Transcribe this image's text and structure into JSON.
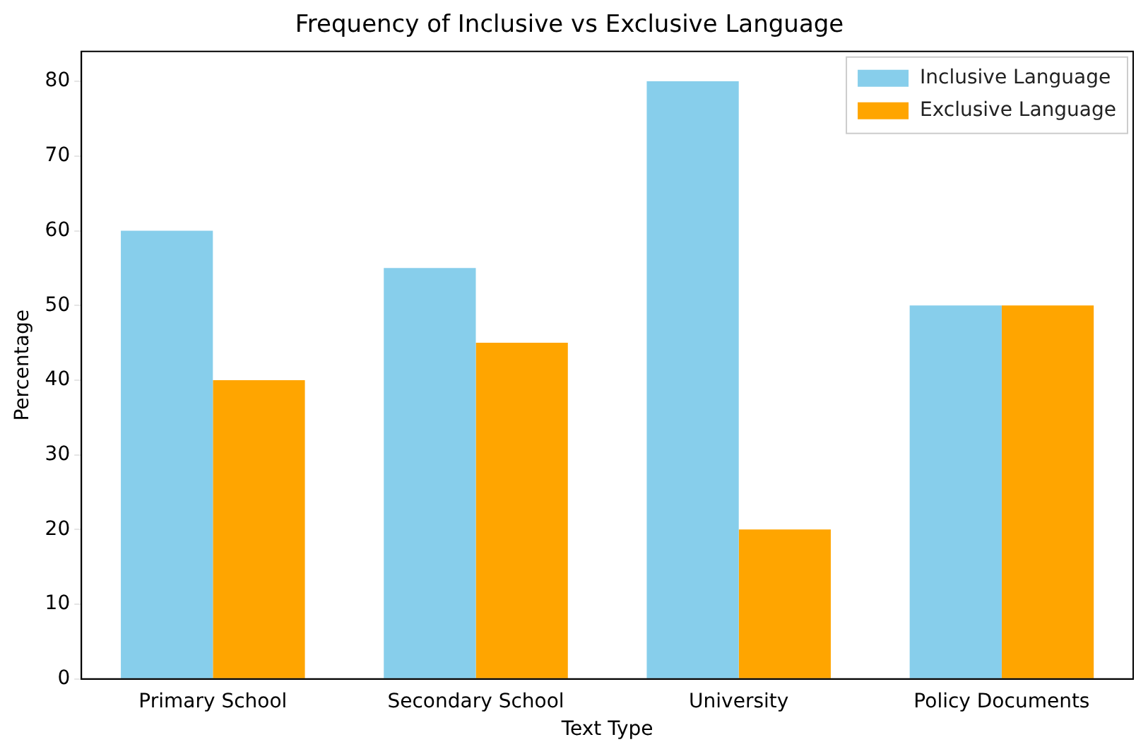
{
  "chart_data": {
    "type": "bar",
    "title": "Frequency of Inclusive vs Exclusive Language",
    "xlabel": "Text Type",
    "ylabel": "Percentage",
    "categories": [
      "Primary School",
      "Secondary School",
      "University",
      "Policy Documents"
    ],
    "series": [
      {
        "name": "Inclusive Language",
        "color": "#87ceeb",
        "values": [
          60,
          55,
          80,
          50
        ]
      },
      {
        "name": "Exclusive Language",
        "color": "#ffa500",
        "values": [
          40,
          45,
          20,
          50
        ]
      }
    ],
    "ylim": [
      0,
      84
    ],
    "yticks": [
      0,
      10,
      20,
      30,
      40,
      50,
      60,
      70,
      80
    ],
    "grid": false,
    "legend": "top right"
  }
}
